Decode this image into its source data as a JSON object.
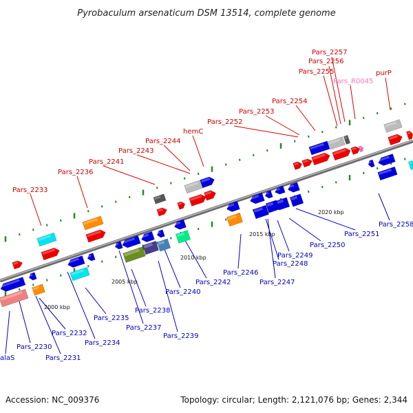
{
  "title": "Pyrobaculum arsenaticum DSM 13514, complete genome",
  "footer": {
    "accession": "Accession: NC_009376",
    "topology": "Topology: circular; Length: 2,121,076 bp; Genes: 2,344"
  },
  "colors": {
    "backbone": "#8a8a8a",
    "tick": "#228b22",
    "label_top": "#cc0000",
    "label_bottom": "#0000bb",
    "label_rna": "#ff77bb",
    "leader_top": "#dd0000",
    "leader_bottom": "#0000cc"
  },
  "kbp_labels": [
    "2000 kbp",
    "2005 kbp",
    "2010 kbp",
    "2015 kbp",
    "2020 kbp"
  ],
  "top_labels": [
    "Pars_2233",
    "Pars_2236",
    "Pars_2241",
    "Pars_2243",
    "Pars_2244",
    "hemC",
    "Pars_2252",
    "Pars_2253",
    "Pars_2254",
    "Pars_2255",
    "Pars_2256",
    "Pars_2257",
    "Pars_R0045",
    "purP"
  ],
  "bottom_labels": [
    "alaS",
    "Pars_2230",
    "Pars_2231",
    "Pars_2232",
    "Pars_2234",
    "Pars_2235",
    "Pars_2237",
    "Pars_2238",
    "Pars_2239",
    "Pars_2240",
    "Pars_2242",
    "Pars_2246",
    "Pars_2247",
    "Pars_2248",
    "Pars_2249",
    "Pars_2250",
    "Pars_2251",
    "Pars_2258"
  ]
}
